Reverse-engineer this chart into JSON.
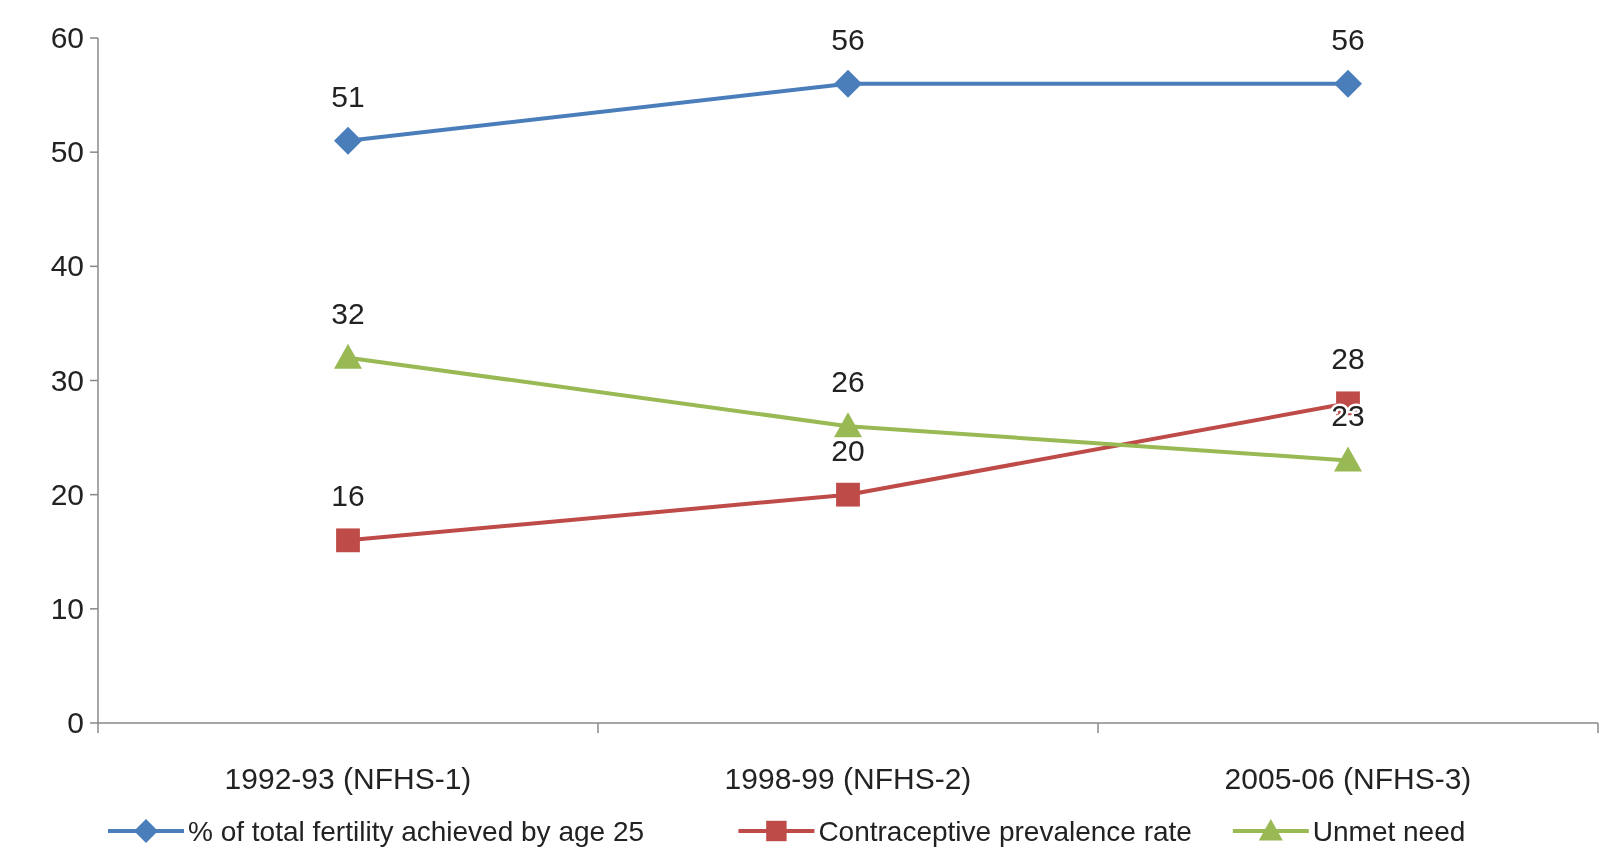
{
  "chart_data": {
    "type": "line",
    "categories": [
      "1992-93 (NFHS-1)",
      "1998-99 (NFHS-2)",
      "2005-06 (NFHS-3)"
    ],
    "series": [
      {
        "name": "% of total fertility achieved by age 25",
        "color": "#4a7ebb",
        "values": [
          51,
          56,
          56
        ],
        "marker": "diamond"
      },
      {
        "name": "Contraceptive prevalence rate",
        "color": "#be4b48",
        "values": [
          16,
          20,
          28
        ],
        "marker": "square"
      },
      {
        "name": "Unmet need",
        "color": "#98b954",
        "values": [
          32,
          26,
          23
        ],
        "marker": "triangle"
      }
    ],
    "ylim": [
      0,
      60
    ],
    "yticks": [
      0,
      10,
      20,
      30,
      40,
      50,
      60
    ],
    "data_labels": true,
    "legend": "bottom",
    "grid": false,
    "line_style": "solid"
  }
}
